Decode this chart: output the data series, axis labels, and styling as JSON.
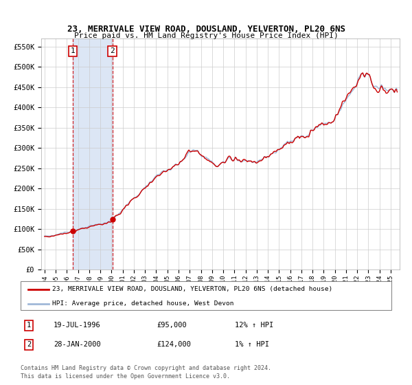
{
  "title": "23, MERRIVALE VIEW ROAD, DOUSLAND, YELVERTON, PL20 6NS",
  "subtitle": "Price paid vs. HM Land Registry's House Price Index (HPI)",
  "legend_line1": "23, MERRIVALE VIEW ROAD, DOUSLAND, YELVERTON, PL20 6NS (detached house)",
  "legend_line2": "HPI: Average price, detached house, West Devon",
  "sale1_label": "1",
  "sale1_date": "19-JUL-1996",
  "sale1_price": "£95,000",
  "sale1_hpi": "12% ↑ HPI",
  "sale1_x": 1996.54,
  "sale1_y": 95000,
  "sale2_label": "2",
  "sale2_date": "28-JAN-2000",
  "sale2_price": "£124,000",
  "sale2_hpi": "1% ↑ HPI",
  "sale2_x": 2000.07,
  "sale2_y": 124000,
  "ylim_min": 0,
  "ylim_max": 570000,
  "yticks": [
    0,
    50000,
    100000,
    150000,
    200000,
    250000,
    300000,
    350000,
    400000,
    450000,
    500000,
    550000
  ],
  "ytick_labels": [
    "£0",
    "£50K",
    "£100K",
    "£150K",
    "£200K",
    "£250K",
    "£300K",
    "£350K",
    "£400K",
    "£450K",
    "£500K",
    "£550K"
  ],
  "xtick_years": [
    1994,
    1995,
    1996,
    1997,
    1998,
    1999,
    2000,
    2001,
    2002,
    2003,
    2004,
    2005,
    2006,
    2007,
    2008,
    2009,
    2010,
    2011,
    2012,
    2013,
    2014,
    2015,
    2016,
    2017,
    2018,
    2019,
    2020,
    2021,
    2022,
    2023,
    2024,
    2025
  ],
  "bg_shaded_color": "#dce6f5",
  "hpi_line_color": "#a0b8d8",
  "price_line_color": "#cc0000",
  "marker_color": "#cc0000",
  "dashed_line_color": "#cc0000",
  "footnote": "Contains HM Land Registry data © Crown copyright and database right 2024.\nThis data is licensed under the Open Government Licence v3.0.",
  "xlim_min": 1993.7,
  "xlim_max": 2025.8
}
